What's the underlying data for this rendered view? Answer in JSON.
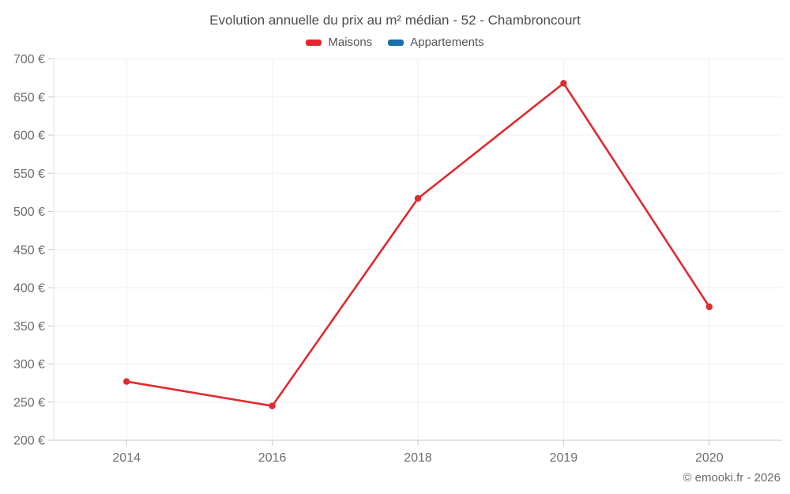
{
  "title": "Evolution annuelle du prix au m² médian - 52 - Chambroncourt",
  "footer": "© emooki.fr - 2026",
  "legend": [
    {
      "label": "Maisons",
      "color": "#e02a30"
    },
    {
      "label": "Appartements",
      "color": "#1b6fa8"
    }
  ],
  "chart_data": {
    "type": "line",
    "title": "Evolution annuelle du prix au m² médian - 52 - Chambroncourt",
    "categories": [
      "2014",
      "2016",
      "2018",
      "2019",
      "2020"
    ],
    "series": [
      {
        "name": "Maisons",
        "color": "#e02a30",
        "values": [
          277,
          245,
          517,
          668,
          375
        ]
      },
      {
        "name": "Appartements",
        "color": "#1b6fa8",
        "values": []
      }
    ],
    "xlabel": "",
    "ylabel": "",
    "ylim": [
      200,
      700
    ],
    "y_tick_step": 50,
    "y_tick_labels": [
      "700 €",
      "650 €",
      "600 €",
      "550 €",
      "500 €",
      "450 €",
      "400 €",
      "350 €",
      "300 €",
      "250 €",
      "200 €"
    ],
    "grid": true,
    "legend_position": "top"
  }
}
